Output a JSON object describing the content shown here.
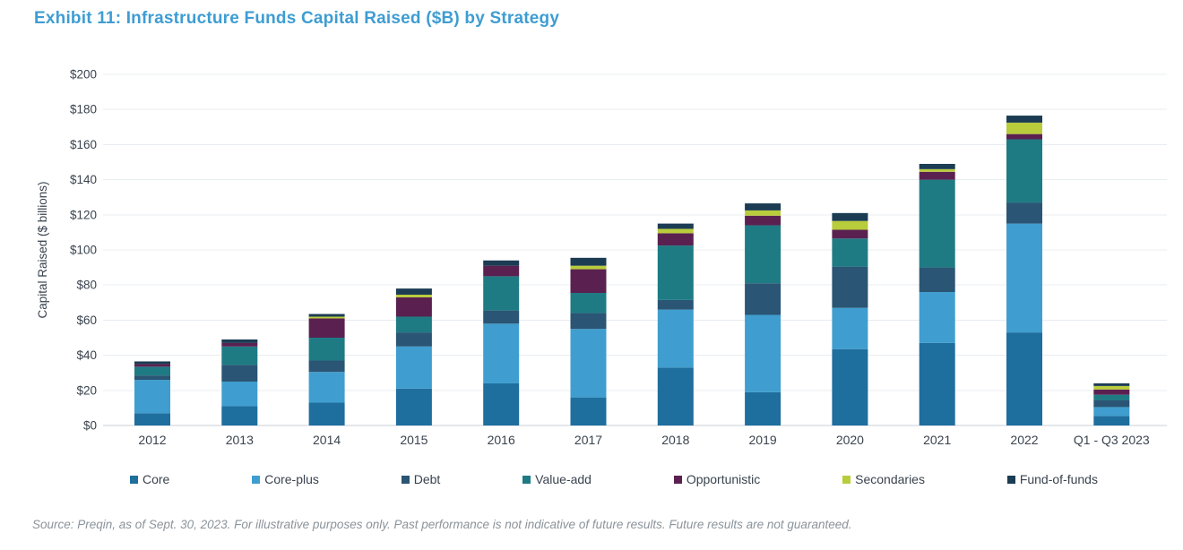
{
  "footnote": "Source: Preqin, as of Sept. 30, 2023. For illustrative purposes only. Past performance is not indicative of future results. Future results are not guaranteed.",
  "chart_data": {
    "type": "bar",
    "stacked": true,
    "title": "Exhibit 11: Infrastructure Funds Capital Raised ($B) by Strategy",
    "xlabel": "",
    "ylabel": "Capital Raised ($ billions)",
    "ylim": [
      0,
      200
    ],
    "ytick_step": 20,
    "ytick_labels": [
      "$0",
      "$20",
      "$40",
      "$60",
      "$80",
      "$100",
      "$120",
      "$140",
      "$160",
      "$180",
      "$200"
    ],
    "grid": "horizontal",
    "legend_position": "bottom",
    "categories": [
      "2012",
      "2013",
      "2014",
      "2015",
      "2016",
      "2017",
      "2018",
      "2019",
      "2020",
      "2021",
      "2022",
      "Q1 - Q3 2023"
    ],
    "series": [
      {
        "name": "Core",
        "color": "#1E6E9E",
        "values": [
          7,
          11,
          13,
          21,
          24,
          16,
          33,
          19,
          43.5,
          47,
          53,
          5.5
        ]
      },
      {
        "name": "Core-plus",
        "color": "#3F9ECF",
        "values": [
          19,
          14,
          17.5,
          24,
          34,
          39,
          33,
          44,
          23.5,
          29,
          62,
          5
        ]
      },
      {
        "name": "Debt",
        "color": "#2A5574",
        "values": [
          2.5,
          9.5,
          6.5,
          8,
          7.5,
          9,
          5.5,
          18,
          23.5,
          14,
          12,
          4
        ]
      },
      {
        "name": "Value-add",
        "color": "#1E7B84",
        "values": [
          5,
          10.5,
          13,
          9,
          19.5,
          11.5,
          31,
          33,
          16,
          50,
          36,
          3
        ]
      },
      {
        "name": "Opportunistic",
        "color": "#5A2150",
        "values": [
          1.5,
          2,
          11,
          11,
          6,
          13.5,
          7,
          5.5,
          5,
          4.5,
          3,
          3
        ]
      },
      {
        "name": "Secondaries",
        "color": "#B9CC3C",
        "values": [
          0,
          0,
          1,
          1.5,
          0,
          2,
          2.5,
          3,
          5,
          1.5,
          6.5,
          2
        ]
      },
      {
        "name": "Fund-of-funds",
        "color": "#1B3C53",
        "values": [
          1.5,
          2,
          1.5,
          3.5,
          3,
          4.5,
          3,
          4,
          4.5,
          3,
          4,
          1.5
        ]
      }
    ],
    "totals": [
      36.5,
      49,
      63.5,
      78,
      94,
      95.5,
      115,
      126.5,
      121,
      149,
      176.5,
      24
    ]
  }
}
